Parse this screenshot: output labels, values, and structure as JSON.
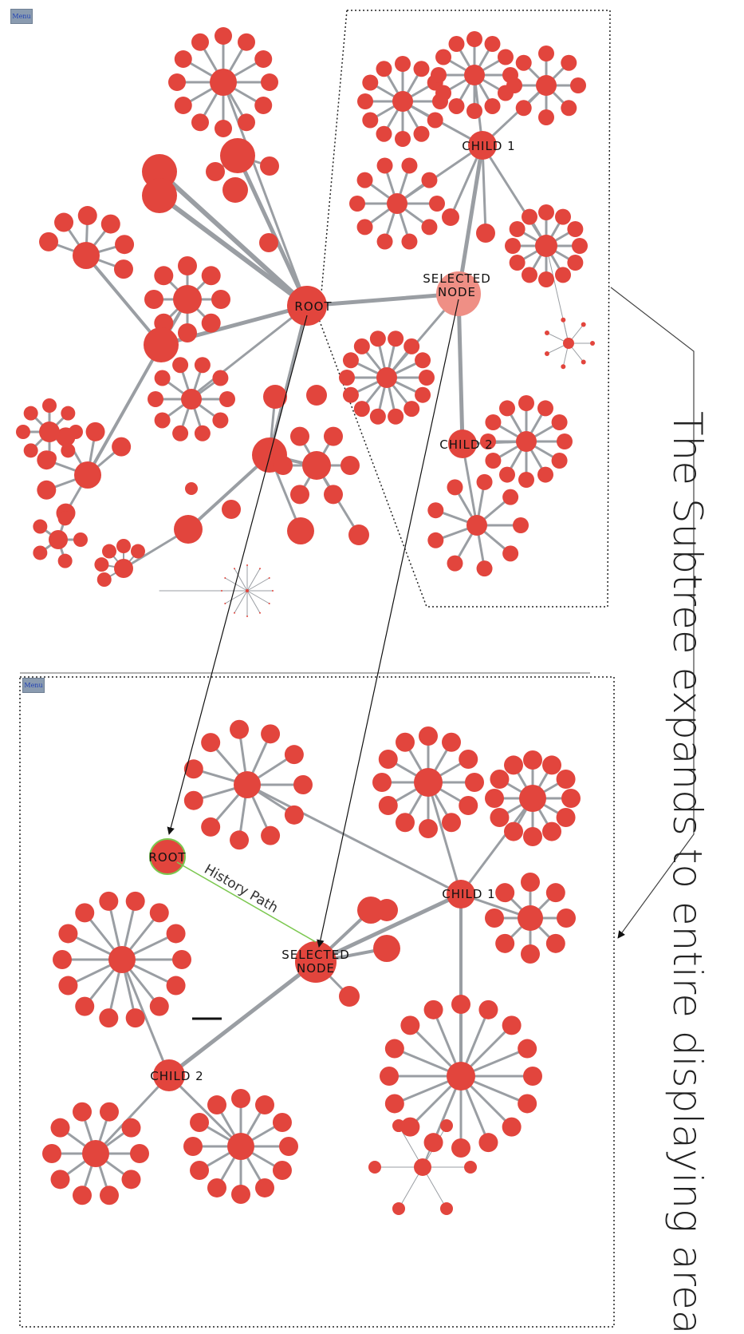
{
  "menu_label": "Menu",
  "top_view": {
    "labels": {
      "root": "ROOT",
      "selected": "SELECTED NODE",
      "child1": "CHILD 1",
      "child2": "CHILD 2"
    }
  },
  "bottom_view": {
    "labels": {
      "root": "ROOT",
      "selected": "SELECTED NODE",
      "child1": "CHILD 1",
      "child2": "CHILD 2"
    },
    "history_path": "History Path"
  },
  "caption": "The Subtree expands to entire displaying area",
  "colors": {
    "node": "#e2453d",
    "selected_top": "#ef8f85",
    "edge": "#9a9ea3",
    "history": "#7cc850"
  }
}
